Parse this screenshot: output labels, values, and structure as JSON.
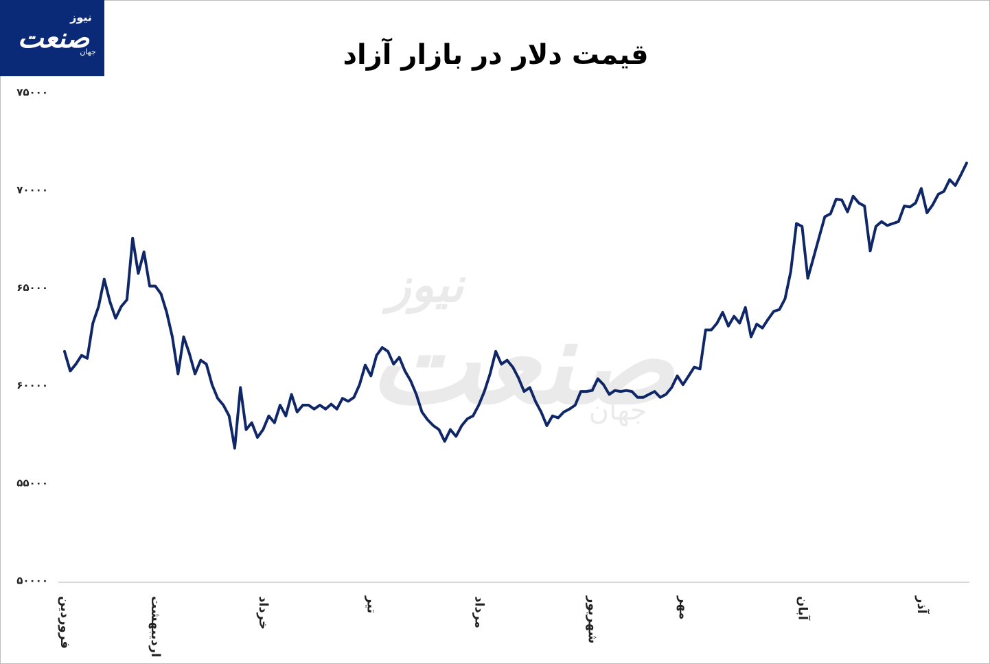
{
  "chart_data": {
    "type": "line",
    "title": "قیمت دلار در بازار آزاد",
    "logo": {
      "main": "صنعت",
      "top": "نیوز",
      "small": "جهان"
    },
    "color": "#0f2766",
    "values": [
      61750,
      60750,
      61100,
      61550,
      61400,
      63200,
      64050,
      65450,
      64300,
      63450,
      64050,
      64400,
      67550,
      65750,
      66850,
      65100,
      65100,
      64700,
      63750,
      62500,
      60600,
      62500,
      61650,
      60600,
      61300,
      61100,
      60050,
      59350,
      59000,
      58450,
      56800,
      59900,
      57750,
      58100,
      57350,
      57750,
      58450,
      58100,
      59000,
      58450,
      59550,
      58650,
      59000,
      59000,
      58800,
      59000,
      58800,
      59050,
      58800,
      59350,
      59200,
      59400,
      60050,
      61050,
      60500,
      61550,
      61950,
      61750,
      61100,
      61450,
      60750,
      60250,
      59550,
      58650,
      58250,
      57950,
      57750,
      57150,
      57750,
      57400,
      57950,
      58300,
      58450,
      59000,
      59700,
      60600,
      61750,
      61100,
      61300,
      60950,
      60400,
      59700,
      59900,
      59200,
      58650,
      57950,
      58450,
      58350,
      58650,
      58800,
      59000,
      59700,
      59700,
      59750,
      60350,
      60050,
      59550,
      59750,
      59700,
      59750,
      59700,
      59400,
      59400,
      59550,
      59700,
      59400,
      59550,
      59900,
      60500,
      60050,
      60500,
      60950,
      60850,
      62850,
      62850,
      63200,
      63750,
      63050,
      63550,
      63200,
      64000,
      62500,
      63150,
      62950,
      63400,
      63800,
      63900,
      64450,
      65850,
      68300,
      68150,
      65500,
      66550,
      67600,
      68650,
      68800,
      69550,
      69500,
      68900,
      69700,
      69350,
      69200,
      66900,
      68150,
      68400,
      68200,
      68300,
      68400,
      69200,
      69150,
      69350,
      70100,
      68850,
      69250,
      69800,
      69950,
      70550,
      70250,
      70800,
      71400
    ],
    "xlim": [
      0,
      159
    ],
    "xticks": [
      {
        "value": 0,
        "label": "فروردین"
      },
      {
        "value": 16,
        "label": "اردیبهشت"
      },
      {
        "value": 35,
        "label": "خرداد"
      },
      {
        "value": 54,
        "label": "تیر"
      },
      {
        "value": 73,
        "label": "مرداد"
      },
      {
        "value": 93,
        "label": "شهریور"
      },
      {
        "value": 109,
        "label": "مهر"
      },
      {
        "value": 130,
        "label": "آبان"
      },
      {
        "value": 151,
        "label": "آذر"
      }
    ],
    "ylim": [
      50000,
      75000
    ],
    "yticks": [
      {
        "value": 50000,
        "label": "۵۰۰۰۰"
      },
      {
        "value": 55000,
        "label": "۵۵۰۰۰"
      },
      {
        "value": 60000,
        "label": "۶۰۰۰۰"
      },
      {
        "value": 65000,
        "label": "۶۵۰۰۰"
      },
      {
        "value": 70000,
        "label": "۷۰۰۰۰"
      },
      {
        "value": 75000,
        "label": "۷۵۰۰۰"
      }
    ],
    "grid": false
  }
}
